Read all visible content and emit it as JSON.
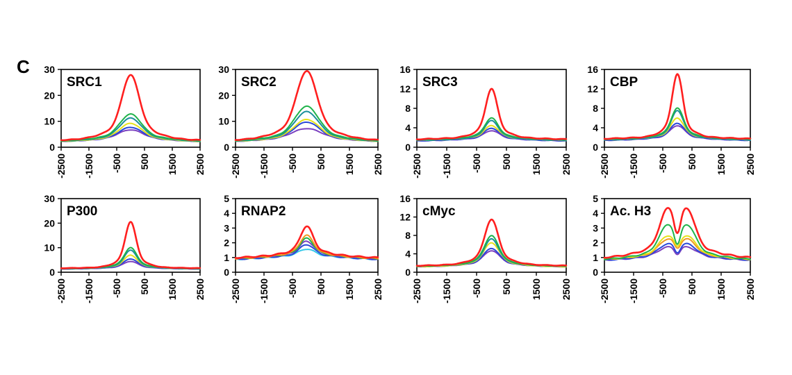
{
  "panel_label": "C",
  "colors": {
    "red": "#ff1f1f",
    "green": "#1fb34a",
    "teal": "#1a8f9a",
    "yellow": "#e6e21a",
    "cyan": "#35c8e8",
    "blue": "#2a48d8",
    "purple": "#7a3fbf",
    "orange": "#f09a20"
  },
  "chart_data": [
    {
      "type": "line",
      "title": "SRC1",
      "ylim": [
        0,
        30
      ],
      "yticks": [
        "0",
        "10",
        "20",
        "30"
      ],
      "xlim": [
        -2500,
        2500
      ],
      "xticks": [
        "-2500",
        "-1500",
        "-500",
        "500",
        "1500",
        "2500"
      ],
      "series": [
        {
          "color": "red",
          "base": 2.5,
          "peak": 27,
          "width": 420
        },
        {
          "color": "green",
          "base": 2.2,
          "peak": 12,
          "width": 520
        },
        {
          "color": "teal",
          "base": 2.1,
          "peak": 10.5,
          "width": 520
        },
        {
          "color": "yellow",
          "base": 2.0,
          "peak": 8.5,
          "width": 540
        },
        {
          "color": "blue",
          "base": 2.0,
          "peak": 7,
          "width": 560
        },
        {
          "color": "purple",
          "base": 2.0,
          "peak": 6,
          "width": 600
        }
      ]
    },
    {
      "type": "line",
      "title": "SRC2",
      "ylim": [
        0,
        30
      ],
      "yticks": [
        "0",
        "10",
        "20",
        "30"
      ],
      "xlim": [
        -2500,
        2500
      ],
      "xticks": [
        "-2500",
        "-1500",
        "-500",
        "500",
        "1500",
        "2500"
      ],
      "series": [
        {
          "color": "red",
          "base": 2.5,
          "peak": 28.5,
          "width": 480
        },
        {
          "color": "green",
          "base": 2.2,
          "peak": 15,
          "width": 560
        },
        {
          "color": "teal",
          "base": 2.1,
          "peak": 13,
          "width": 560
        },
        {
          "color": "yellow",
          "base": 2.0,
          "peak": 10,
          "width": 600
        },
        {
          "color": "blue",
          "base": 2.0,
          "peak": 9,
          "width": 600
        },
        {
          "color": "purple",
          "base": 2.0,
          "peak": 6.5,
          "width": 700
        }
      ]
    },
    {
      "type": "line",
      "title": "SRC3",
      "ylim": [
        0,
        16
      ],
      "yticks": [
        "0",
        "4",
        "8",
        "12",
        "16"
      ],
      "xlim": [
        -2500,
        2500
      ],
      "xticks": [
        "-2500",
        "-1500",
        "-500",
        "500",
        "1500",
        "2500"
      ],
      "series": [
        {
          "color": "red",
          "base": 1.5,
          "peak": 11.5,
          "width": 260
        },
        {
          "color": "green",
          "base": 1.4,
          "peak": 5.5,
          "width": 300
        },
        {
          "color": "teal",
          "base": 1.3,
          "peak": 5,
          "width": 300
        },
        {
          "color": "yellow",
          "base": 1.3,
          "peak": 4,
          "width": 320
        },
        {
          "color": "blue",
          "base": 1.2,
          "peak": 3.5,
          "width": 330
        },
        {
          "color": "purple",
          "base": 1.2,
          "peak": 3,
          "width": 340
        }
      ]
    },
    {
      "type": "line",
      "title": "CBP",
      "ylim": [
        0,
        16
      ],
      "yticks": [
        "0",
        "4",
        "8",
        "12",
        "16"
      ],
      "xlim": [
        -2500,
        2500
      ],
      "xticks": [
        "-2500",
        "-1500",
        "-500",
        "500",
        "1500",
        "2500"
      ],
      "series": [
        {
          "color": "red",
          "base": 1.6,
          "peak": 14.5,
          "width": 240
        },
        {
          "color": "green",
          "base": 1.5,
          "peak": 7.5,
          "width": 280
        },
        {
          "color": "teal",
          "base": 1.4,
          "peak": 7,
          "width": 280
        },
        {
          "color": "yellow",
          "base": 1.4,
          "peak": 5.5,
          "width": 300
        },
        {
          "color": "blue",
          "base": 1.3,
          "peak": 4.5,
          "width": 320
        },
        {
          "color": "purple",
          "base": 1.3,
          "peak": 4,
          "width": 330
        }
      ]
    },
    {
      "type": "line",
      "title": "P300",
      "ylim": [
        0,
        30
      ],
      "yticks": [
        "0",
        "10",
        "20",
        "30"
      ],
      "xlim": [
        -2500,
        2500
      ],
      "xticks": [
        "-2500",
        "-1500",
        "-500",
        "500",
        "1500",
        "2500"
      ],
      "series": [
        {
          "color": "red",
          "base": 1.5,
          "peak": 20,
          "width": 260
        },
        {
          "color": "green",
          "base": 1.4,
          "peak": 9.5,
          "width": 300
        },
        {
          "color": "teal",
          "base": 1.3,
          "peak": 8.5,
          "width": 300
        },
        {
          "color": "yellow",
          "base": 1.3,
          "peak": 6.5,
          "width": 320
        },
        {
          "color": "blue",
          "base": 1.2,
          "peak": 5,
          "width": 340
        },
        {
          "color": "purple",
          "base": 1.2,
          "peak": 4,
          "width": 350
        }
      ]
    },
    {
      "type": "line",
      "title": "RNAP2",
      "ylim": [
        0,
        5
      ],
      "yticks": [
        "0",
        "1",
        "2",
        "3",
        "4",
        "5"
      ],
      "xlim": [
        -2500,
        2500
      ],
      "xticks": [
        "-2500",
        "-1500",
        "-500",
        "500",
        "1500",
        "2500"
      ],
      "series": [
        {
          "color": "red",
          "base": 0.9,
          "peak": 2.8,
          "width": 300
        },
        {
          "color": "orange",
          "base": 0.85,
          "peak": 2.2,
          "width": 320
        },
        {
          "color": "green",
          "base": 0.85,
          "peak": 2.0,
          "width": 320
        },
        {
          "color": "purple",
          "base": 0.85,
          "peak": 1.8,
          "width": 340
        },
        {
          "color": "blue",
          "base": 0.8,
          "peak": 1.6,
          "width": 340
        },
        {
          "color": "cyan",
          "base": 0.8,
          "peak": 1.3,
          "width": 360
        }
      ]
    },
    {
      "type": "line",
      "title": "cMyc",
      "ylim": [
        0,
        16
      ],
      "yticks": [
        "0",
        "4",
        "8",
        "12",
        "16"
      ],
      "xlim": [
        -2500,
        2500
      ],
      "xticks": [
        "-2500",
        "-1500",
        "-500",
        "500",
        "1500",
        "2500"
      ],
      "series": [
        {
          "color": "red",
          "base": 1.3,
          "peak": 11,
          "width": 300
        },
        {
          "color": "green",
          "base": 1.2,
          "peak": 7.5,
          "width": 320
        },
        {
          "color": "teal",
          "base": 1.2,
          "peak": 6.8,
          "width": 320
        },
        {
          "color": "yellow",
          "base": 1.1,
          "peak": 6,
          "width": 340
        },
        {
          "color": "blue",
          "base": 1.1,
          "peak": 4.8,
          "width": 350
        },
        {
          "color": "purple",
          "base": 1.1,
          "peak": 4.3,
          "width": 360
        }
      ]
    },
    {
      "type": "line",
      "title": "Ac. H3",
      "ylim": [
        0,
        5
      ],
      "yticks": [
        "0",
        "1",
        "2",
        "3",
        "4",
        "5"
      ],
      "xlim": [
        -2500,
        2500
      ],
      "xticks": [
        "-2500",
        "-1500",
        "-500",
        "500",
        "1500",
        "2500"
      ],
      "bimodal": true,
      "series": [
        {
          "color": "red",
          "base": 0.9,
          "peak": 3.8,
          "dip": 2.6,
          "width": 380
        },
        {
          "color": "green",
          "base": 0.8,
          "peak": 2.8,
          "dip": 1.8,
          "width": 400
        },
        {
          "color": "yellow",
          "base": 0.8,
          "peak": 2.1,
          "dip": 1.7,
          "width": 420
        },
        {
          "color": "orange",
          "base": 0.8,
          "peak": 1.9,
          "dip": 1.6,
          "width": 420
        },
        {
          "color": "blue",
          "base": 0.75,
          "peak": 1.6,
          "dip": 1.3,
          "width": 440
        },
        {
          "color": "purple",
          "base": 0.75,
          "peak": 1.4,
          "dip": 1.2,
          "width": 460
        }
      ]
    }
  ]
}
